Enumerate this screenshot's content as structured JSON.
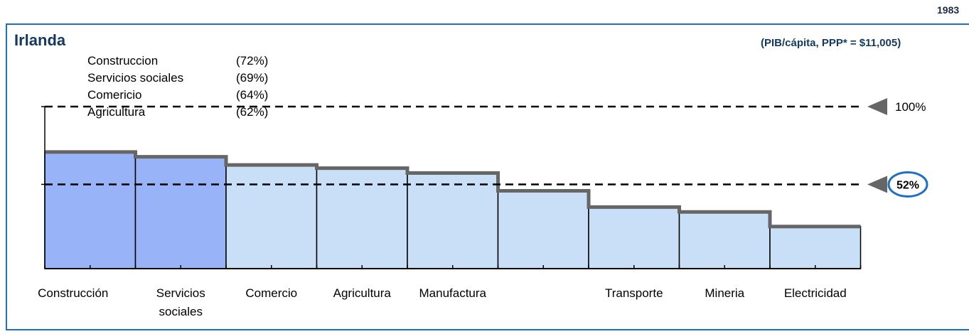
{
  "header": {
    "year": "1983",
    "title": "Irlanda",
    "subtitle": "(PIB/cápita, PPP* = $11,005)"
  },
  "legend": {
    "items": [
      {
        "label": "Construccion",
        "pct": "(72%)"
      },
      {
        "label": "Servicios sociales",
        "pct": "(69%)"
      },
      {
        "label": "Comericio",
        "pct": "(64%)"
      },
      {
        "label": "Agricultura",
        "pct": "(62%)"
      }
    ]
  },
  "chart_data": {
    "type": "bar",
    "categories": [
      [
        "Construcción"
      ],
      [
        "Servicios",
        "sociales"
      ],
      [
        "Comercio"
      ],
      [
        "Agricultura"
      ],
      [
        "Manufactura"
      ],
      [
        ""
      ],
      [
        "Transporte"
      ],
      [
        "Mineria"
      ],
      [
        "Electricidad"
      ]
    ],
    "values": [
      72,
      69,
      64,
      62,
      59,
      48,
      38,
      35,
      26
    ],
    "highlighted": [
      true,
      true,
      false,
      false,
      false,
      false,
      false,
      false,
      false
    ],
    "ylim": [
      0,
      100
    ],
    "reference_lines": [
      {
        "value": 100,
        "label": "100%",
        "circled": false
      },
      {
        "value": 52,
        "label": "52%",
        "circled": true
      }
    ],
    "colors": {
      "highlight": "#98b3f7",
      "normal": "#c9dff7",
      "step": "#666666",
      "circle": "#1e6fc8"
    }
  }
}
